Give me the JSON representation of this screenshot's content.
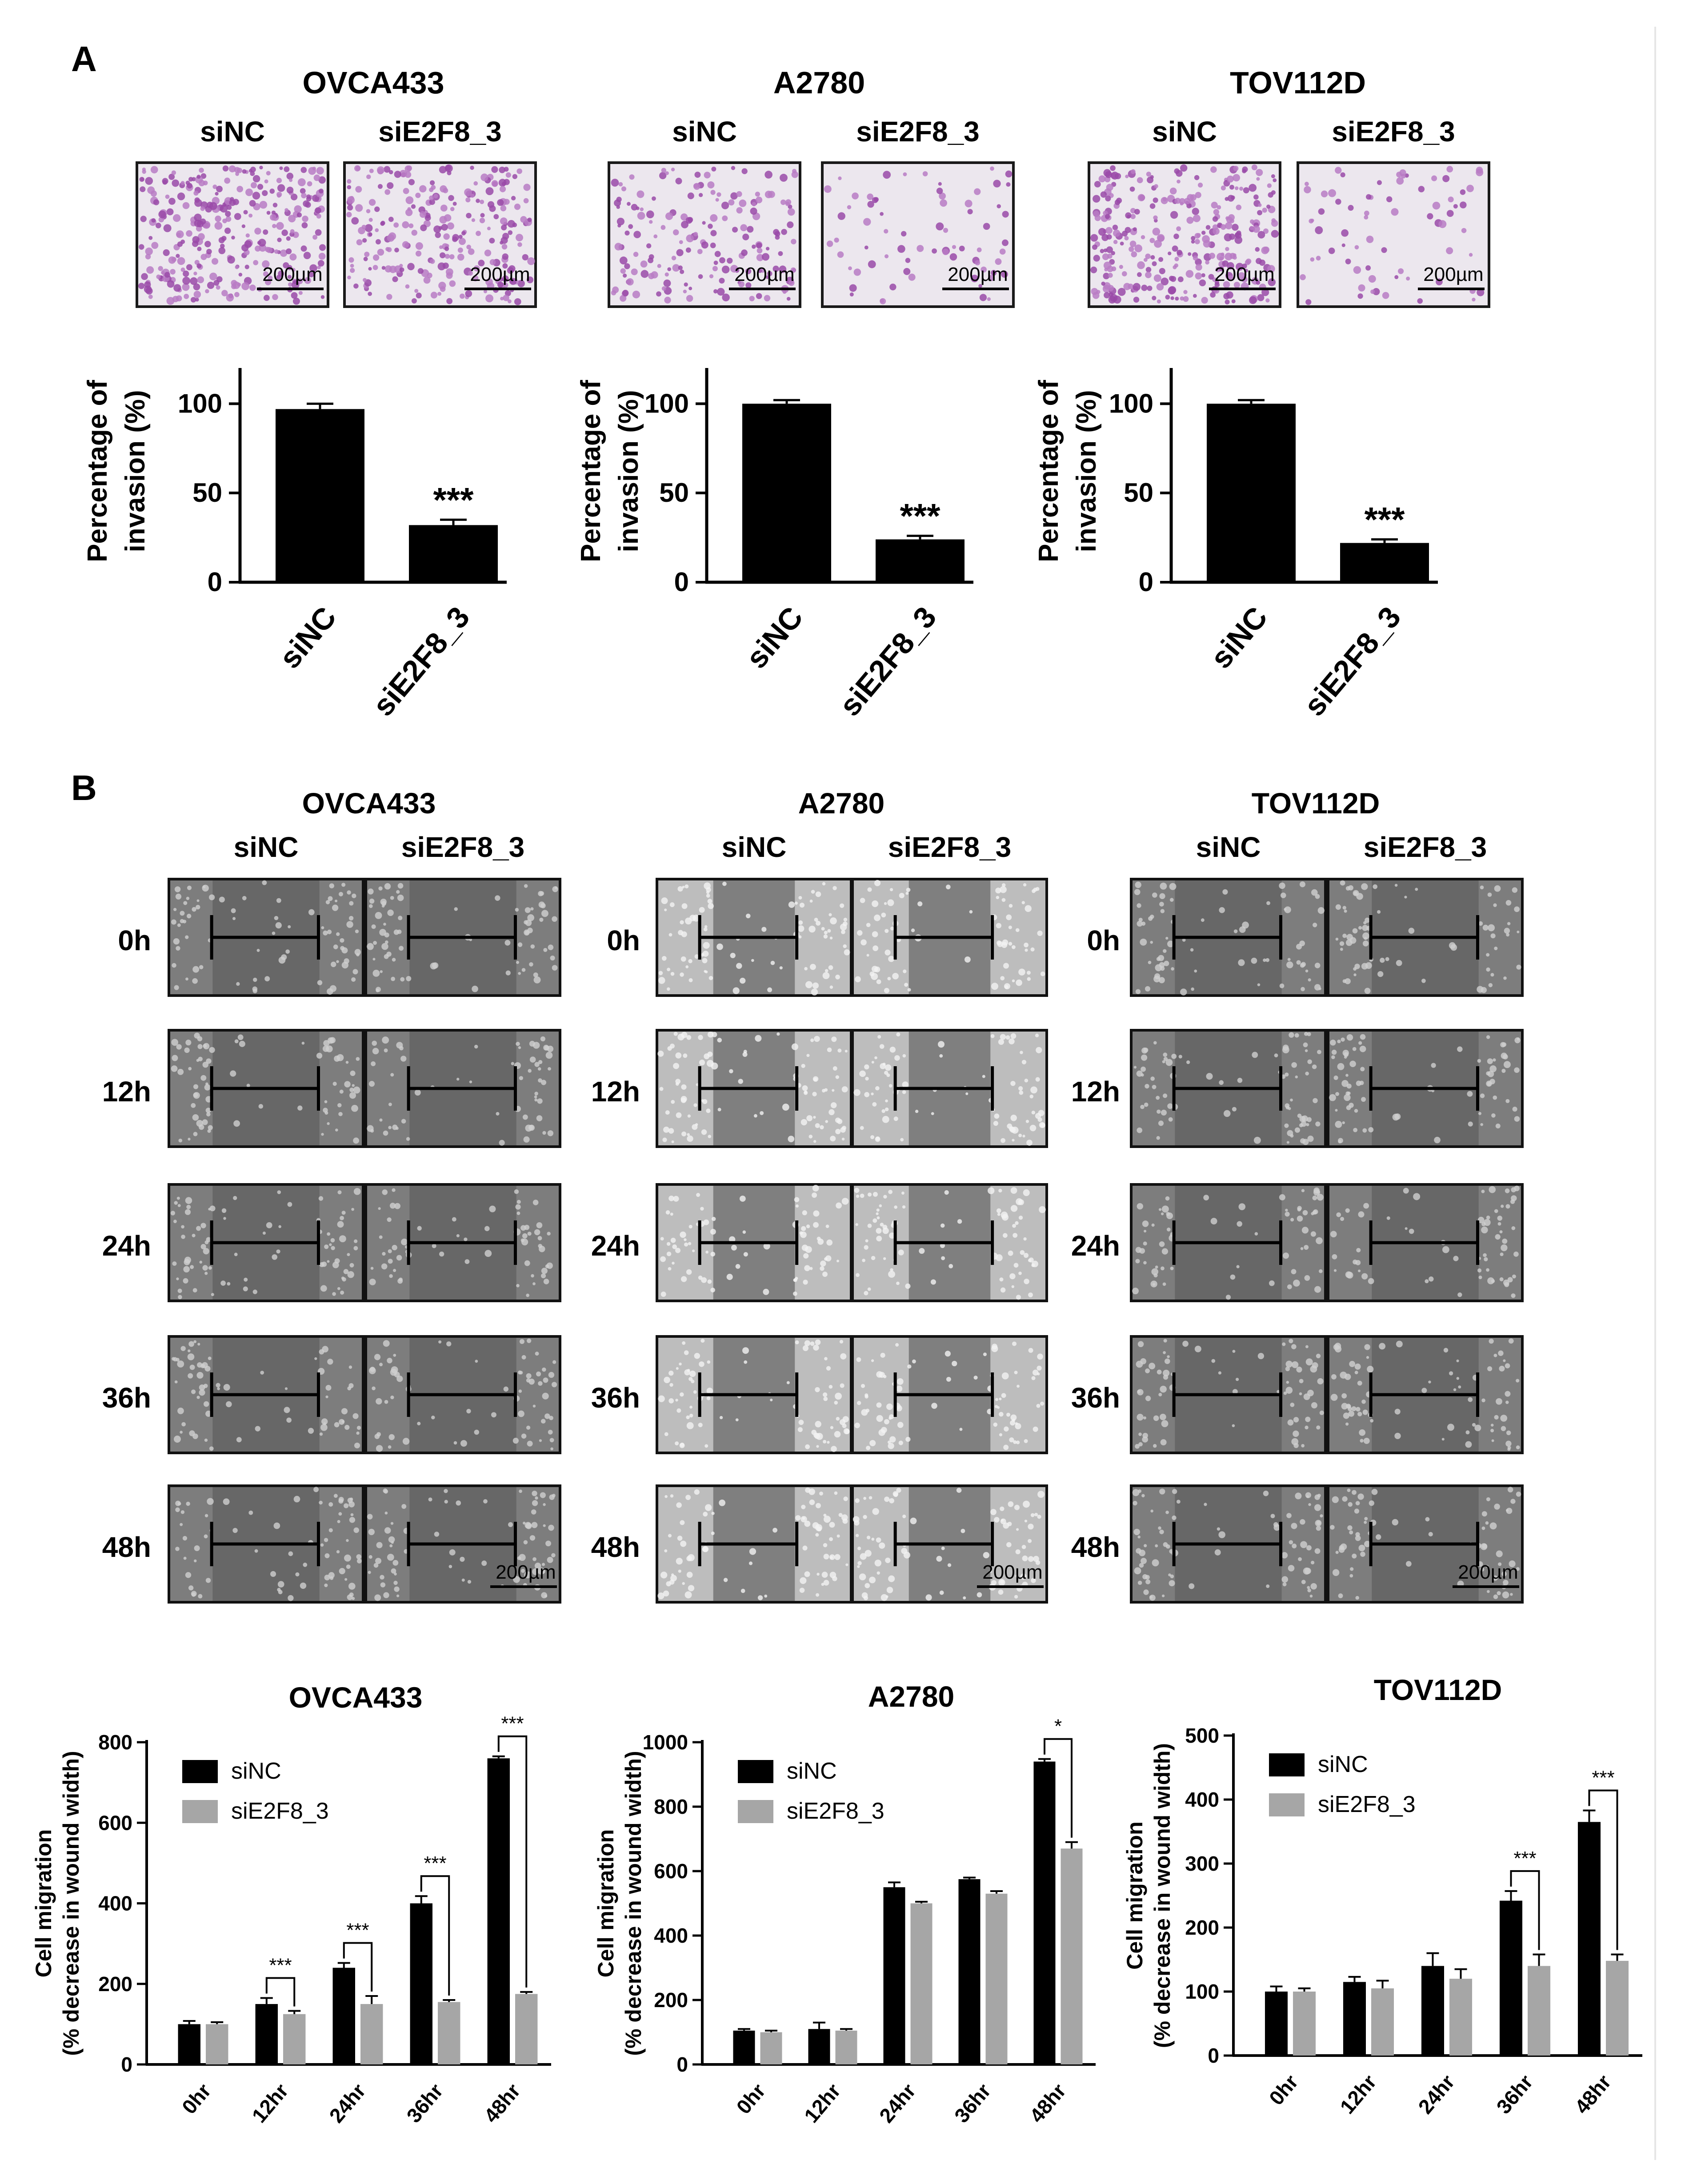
{
  "figure": {
    "panel_a_letter": "A",
    "panel_b_letter": "B",
    "groups": [
      "siNC",
      "siE2F8_3"
    ],
    "scale_bar_label": "200µm",
    "invasion_ylabel_line1": "Percentage of",
    "invasion_ylabel_line2": "invasion (%)",
    "migration_ylabel_line1": "Cell migration",
    "migration_ylabel_line2": "(% decrease in wound width)",
    "timepoints": [
      "0h",
      "12h",
      "24h",
      "36h",
      "48h"
    ]
  },
  "panel_a": [
    {
      "cell_line": "OVCA433"
    },
    {
      "cell_line": "A2780"
    },
    {
      "cell_line": "TOV112D"
    }
  ],
  "panel_b": [
    {
      "cell_line": "OVCA433"
    },
    {
      "cell_line": "A2780"
    },
    {
      "cell_line": "TOV112D"
    }
  ],
  "chart_data": [
    {
      "id": "inv-ovca433",
      "type": "bar",
      "title": "OVCA433",
      "ylabel": "Percentage of invasion (%)",
      "categories": [
        "siNC",
        "siE2F8_3"
      ],
      "values": [
        97,
        32
      ],
      "errors": [
        3,
        3
      ],
      "ylim": [
        0,
        120
      ],
      "yticks": [
        0,
        50,
        100
      ],
      "significance": [
        {
          "category": 1,
          "label": "***"
        }
      ]
    },
    {
      "id": "inv-a2780",
      "type": "bar",
      "title": "A2780",
      "ylabel": "Percentage of invasion (%)",
      "categories": [
        "siNC",
        "siE2F8_3"
      ],
      "values": [
        100,
        24
      ],
      "errors": [
        2,
        2
      ],
      "ylim": [
        0,
        120
      ],
      "yticks": [
        0,
        50,
        100
      ],
      "significance": [
        {
          "category": 1,
          "label": "***"
        }
      ]
    },
    {
      "id": "inv-tov112d",
      "type": "bar",
      "title": "TOV112D",
      "ylabel": "Percentage of invasion (%)",
      "categories": [
        "siNC",
        "siE2F8_3"
      ],
      "values": [
        100,
        22
      ],
      "errors": [
        2,
        2
      ],
      "ylim": [
        0,
        120
      ],
      "yticks": [
        0,
        50,
        100
      ],
      "significance": [
        {
          "category": 1,
          "label": "***"
        }
      ]
    },
    {
      "id": "mig-ovca433",
      "type": "bar",
      "title": "OVCA433",
      "ylabel": "Cell migration (% decrease in wound width)",
      "categories": [
        "0hr",
        "12hr",
        "24hr",
        "36hr",
        "48hr"
      ],
      "series": [
        {
          "name": "siNC",
          "color": "#000000",
          "values": [
            100,
            150,
            240,
            400,
            760
          ],
          "errors": [
            8,
            15,
            12,
            18,
            5
          ]
        },
        {
          "name": "siE2F8_3",
          "color": "#a6a6a6",
          "values": [
            100,
            125,
            150,
            155,
            175
          ],
          "errors": [
            5,
            8,
            20,
            5,
            5
          ]
        }
      ],
      "ylim": [
        0,
        800
      ],
      "yticks": [
        0,
        200,
        400,
        600,
        800
      ],
      "significance": [
        {
          "category": 1,
          "label": "***"
        },
        {
          "category": 2,
          "label": "***"
        },
        {
          "category": 3,
          "label": "***"
        },
        {
          "category": 4,
          "label": "***"
        }
      ]
    },
    {
      "id": "mig-a2780",
      "type": "bar",
      "title": "A2780",
      "ylabel": "Cell migration (% decrease in wound width)",
      "categories": [
        "0hr",
        "12hr",
        "24hr",
        "36hr",
        "48hr"
      ],
      "series": [
        {
          "name": "siNC",
          "color": "#000000",
          "values": [
            105,
            110,
            550,
            575,
            940
          ],
          "errors": [
            5,
            20,
            15,
            5,
            8
          ]
        },
        {
          "name": "siE2F8_3",
          "color": "#a6a6a6",
          "values": [
            100,
            105,
            500,
            530,
            670
          ],
          "errors": [
            5,
            5,
            5,
            8,
            20
          ]
        }
      ],
      "ylim": [
        0,
        1000
      ],
      "yticks": [
        0,
        200,
        400,
        600,
        800,
        1000
      ],
      "significance": [
        {
          "category": 4,
          "label": "*"
        }
      ]
    },
    {
      "id": "mig-tov112d",
      "type": "bar",
      "title": "TOV112D",
      "ylabel": "Cell migration (% decrease in wound width)",
      "categories": [
        "0hr",
        "12hr",
        "24hr",
        "36hr",
        "48hr"
      ],
      "series": [
        {
          "name": "siNC",
          "color": "#000000",
          "values": [
            100,
            115,
            140,
            242,
            365
          ],
          "errors": [
            8,
            8,
            20,
            15,
            18
          ]
        },
        {
          "name": "siE2F8_3",
          "color": "#a6a6a6",
          "values": [
            100,
            105,
            120,
            140,
            148
          ],
          "errors": [
            5,
            12,
            15,
            18,
            10
          ]
        }
      ],
      "ylim": [
        0,
        500
      ],
      "yticks": [
        0,
        100,
        200,
        300,
        400,
        500
      ],
      "significance": [
        {
          "category": 3,
          "label": "***"
        },
        {
          "category": 4,
          "label": "***"
        }
      ]
    }
  ]
}
